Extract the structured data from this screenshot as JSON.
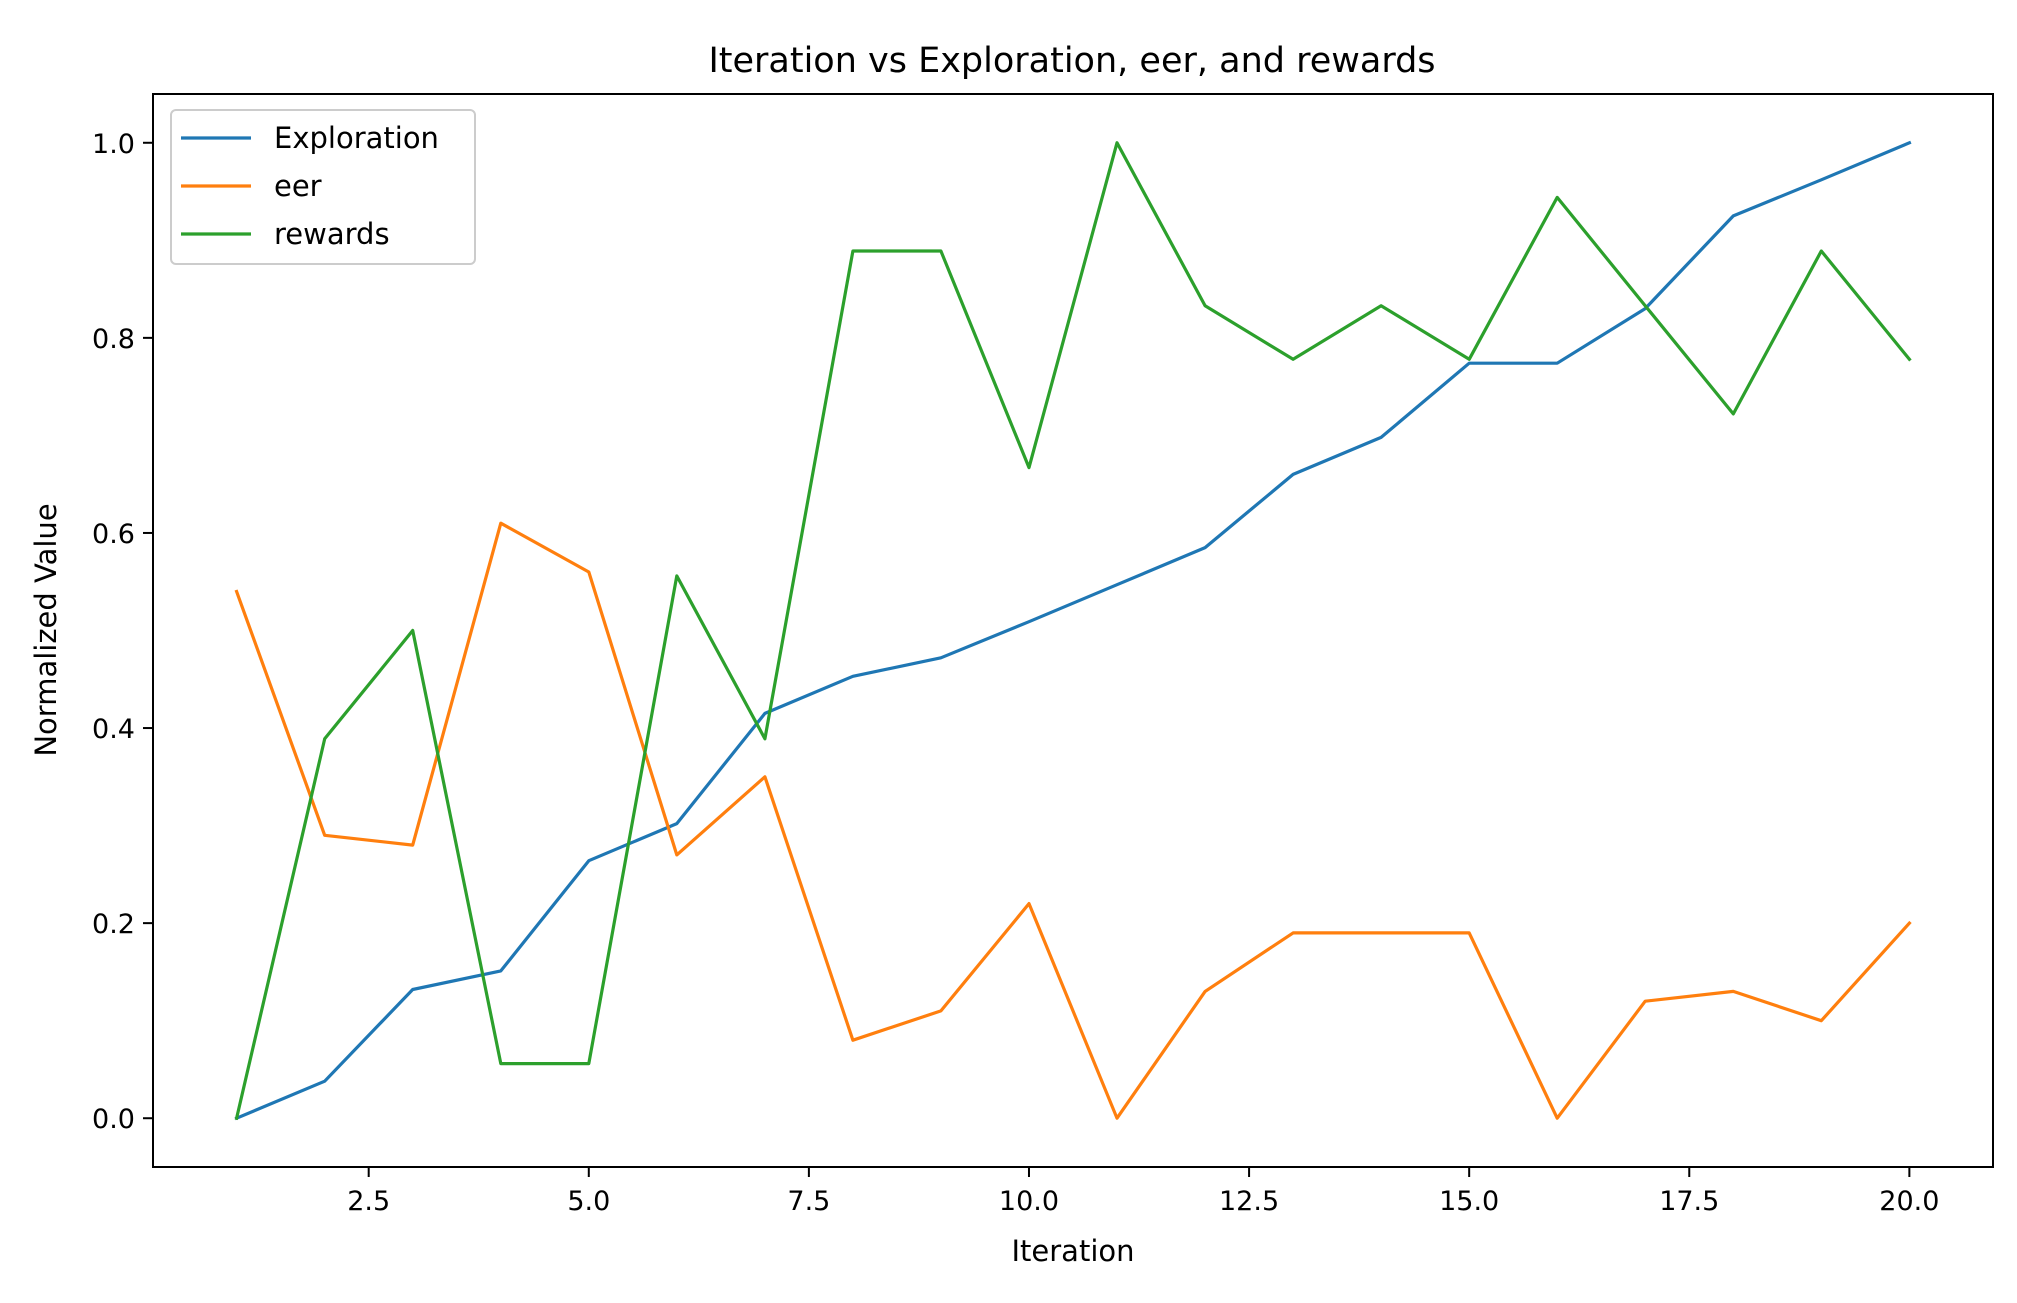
{
  "chart_data": {
    "type": "line",
    "title": "Iteration vs Exploration, eer, and rewards",
    "xlabel": "Iteration",
    "ylabel": "Normalized Value",
    "xlim": [
      0.05,
      20.95
    ],
    "ylim": [
      -0.05,
      1.05
    ],
    "xticks": [
      2.5,
      5.0,
      7.5,
      10.0,
      12.5,
      15.0,
      17.5,
      20.0
    ],
    "xtick_labels": [
      "2.5",
      "5.0",
      "7.5",
      "10.0",
      "12.5",
      "15.0",
      "17.5",
      "20.0"
    ],
    "yticks": [
      0.0,
      0.2,
      0.4,
      0.6,
      0.8,
      1.0
    ],
    "ytick_labels": [
      "0.0",
      "0.2",
      "0.4",
      "0.6",
      "0.8",
      "1.0"
    ],
    "grid": false,
    "legend_position": "top-left",
    "x": [
      1,
      2,
      3,
      4,
      5,
      6,
      7,
      8,
      9,
      10,
      11,
      12,
      13,
      14,
      15,
      16,
      17,
      18,
      19,
      20
    ],
    "series": [
      {
        "name": "Exploration",
        "color": "#1f77b4",
        "values": [
          0.0,
          0.038,
          0.132,
          0.151,
          0.264,
          0.302,
          0.415,
          0.453,
          0.472,
          0.509,
          0.547,
          0.585,
          0.66,
          0.698,
          0.774,
          0.774,
          0.83,
          0.925,
          0.962,
          1.0
        ]
      },
      {
        "name": "eer",
        "color": "#ff7f0e",
        "values": [
          0.54,
          0.29,
          0.28,
          0.61,
          0.56,
          0.27,
          0.35,
          0.08,
          0.11,
          0.22,
          0.0,
          0.13,
          0.19,
          0.19,
          0.19,
          0.0,
          0.12,
          0.13,
          0.1,
          0.2
        ]
      },
      {
        "name": "rewards",
        "color": "#2ca02c",
        "values": [
          0.0,
          0.389,
          0.5,
          0.056,
          0.056,
          0.556,
          0.389,
          0.889,
          0.889,
          0.667,
          1.0,
          0.833,
          0.778,
          0.833,
          0.778,
          0.944,
          0.833,
          0.722,
          0.889,
          0.778
        ]
      }
    ]
  }
}
